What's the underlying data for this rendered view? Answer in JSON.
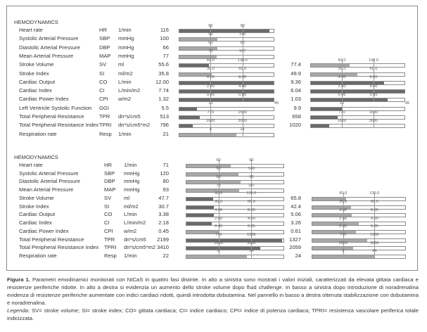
{
  "colors": {
    "abnormal": "#6a6a6a",
    "normal": "#a9a9a9"
  },
  "panels": [
    {
      "header": "HEMODYNAMICS",
      "rows": [
        {
          "label": "Heart rate",
          "abbr": "HR",
          "unit": "1/min",
          "value": "116",
          "low": "60",
          "high": "90"
        },
        {
          "label": "Systolic Arterial Pressure",
          "abbr": "SBP",
          "unit": "mmHg",
          "value": "100",
          "low": "90",
          "high": "140"
        },
        {
          "label": "Diastolic Arterial Pressure",
          "abbr": "DBP",
          "unit": "mmHg",
          "value": "66",
          "low": "60",
          "high": "90"
        },
        {
          "label": "Mean Arterial Pressure",
          "abbr": "MAP",
          "unit": "mmHg",
          "value": "77",
          "low": "70",
          "high": "107"
        },
        {
          "label": "Stroke Volume",
          "abbr": "SV",
          "unit": "ml",
          "value": "55.6",
          "low": "60.0",
          "high": "130.0"
        },
        {
          "label": "Stroke Index",
          "abbr": "SI",
          "unit": "ml/m2",
          "value": "35.8",
          "low": "35.0",
          "high": "65.0"
        },
        {
          "label": "Cardiac Output",
          "abbr": "CO",
          "unit": "L/min",
          "value": "12.00",
          "low": "4.00",
          "high": "8.00"
        },
        {
          "label": "Cardiac Index",
          "abbr": "CI",
          "unit": "L/min/m2",
          "value": "7.74",
          "low": "2.50",
          "high": "4.00"
        },
        {
          "label": "Cardiac Power Index",
          "abbr": "CPI",
          "unit": "w/m2",
          "value": "1.32",
          "low": "0.45",
          "high": "0.85"
        },
        {
          "label": "Left Ventricle Systolic Function",
          "abbr": "GGI",
          "unit": "",
          "value": "5.5",
          "low": "10",
          "high": "45",
          "high_at_end": true
        },
        {
          "label": "Total Peripheral Resistance",
          "abbr": "TPR",
          "unit": "dn*s/cm5",
          "value": "513",
          "low": "770",
          "high": "1500"
        },
        {
          "label": "Total Peripheral Resistance Index",
          "abbr": "TPRI",
          "unit": "dn*s/cm5*m2",
          "value": "796",
          "low": "1600",
          "high": "3000"
        },
        {
          "label": "Respiration rate",
          "abbr": "Resp",
          "unit": "1/min",
          "value": "21",
          "low": "8",
          "high": "24"
        }
      ]
    },
    {
      "rows": [
        {
          "abbr": "SV",
          "value": "77.4",
          "low": "60.0",
          "high": "130.0"
        },
        {
          "abbr": "SI",
          "value": "49.9",
          "low": "35.0",
          "high": "65.0"
        },
        {
          "abbr": "CO",
          "value": "9.36",
          "low": "4.00",
          "high": "8.00"
        },
        {
          "abbr": "CI",
          "value": "6.04",
          "low": "2.50",
          "high": "4.00"
        },
        {
          "abbr": "CPI",
          "value": "1.03",
          "low": "0.45",
          "high": "0.85"
        },
        {
          "abbr": "GGI",
          "value": "9.9",
          "low": "10",
          "high": "45",
          "high_at_end": true
        },
        {
          "abbr": "TPR",
          "value": "658",
          "low": "770",
          "high": "1500"
        },
        {
          "abbr": "TPRI",
          "value": "1020",
          "low": "1600",
          "high": "3000"
        }
      ]
    },
    {
      "header": "HEMODYNAMICS",
      "rows": [
        {
          "label": "Heart rate",
          "abbr": "HR",
          "unit": "1/min",
          "value": "71",
          "low": "60",
          "high": "90"
        },
        {
          "label": "Systolic Arterial Pressure",
          "abbr": "SBP",
          "unit": "mmHg",
          "value": "120",
          "low": "90",
          "high": "140"
        },
        {
          "label": "Diastolic Arterial Pressure",
          "abbr": "DBP",
          "unit": "mmHg",
          "value": "80",
          "low": "60",
          "high": "90"
        },
        {
          "label": "Mean Arterial Pressure",
          "abbr": "MAP",
          "unit": "mmHg",
          "value": "93",
          "low": "70",
          "high": "107"
        },
        {
          "label": "Stroke Volume",
          "abbr": "SV",
          "unit": "ml",
          "value": "47.7",
          "low": "60.0",
          "high": "130.0"
        },
        {
          "label": "Stroke Index",
          "abbr": "SI",
          "unit": "ml/m2",
          "value": "30.7",
          "low": "35.0",
          "high": "65.0"
        },
        {
          "label": "Cardiac Output",
          "abbr": "CO",
          "unit": "L/min",
          "value": "3.38",
          "low": "4.00",
          "high": "8.00"
        },
        {
          "label": "Cardiac Index",
          "abbr": "CI",
          "unit": "L/min/m2",
          "value": "2.18",
          "low": "2.50",
          "high": "4.00"
        },
        {
          "label": "Cardiac Power Index",
          "abbr": "CPI",
          "unit": "w/m2",
          "value": "0.45",
          "low": "0.45",
          "high": "0.85"
        },
        {
          "label": "Total Peripheral Resistance",
          "abbr": "TPR",
          "unit": "dn*s/cm5",
          "value": "2199",
          "low": "770",
          "high": "1500"
        },
        {
          "label": "Total Peripheral Resistance Index",
          "abbr": "TPRI",
          "unit": "dn*s/cm5*m2",
          "value": "3410",
          "low": "1600",
          "high": "3000"
        },
        {
          "label": "Respiration rate",
          "abbr": "Resp",
          "unit": "1/min",
          "value": "22",
          "low": "8",
          "high": "24"
        }
      ]
    },
    {
      "rows": [
        {
          "abbr": "SV",
          "value": "65.8",
          "low": "60.0",
          "high": "130.0"
        },
        {
          "abbr": "SI",
          "value": "42.4",
          "low": "35.0",
          "high": "65.0"
        },
        {
          "abbr": "CO",
          "value": "5.06",
          "low": "4.00",
          "high": "8.00"
        },
        {
          "abbr": "CI",
          "value": "3.26",
          "low": "2.50",
          "high": "4.00"
        },
        {
          "abbr": "CPI",
          "value": "0.61",
          "low": "0.45",
          "high": "0.85"
        },
        {
          "abbr": "TPR",
          "value": "1327",
          "low": "770",
          "high": "1500"
        },
        {
          "abbr": "TPRI",
          "value": "2059",
          "low": "1600",
          "high": "3000"
        },
        {
          "abbr": "Resp",
          "value": "24",
          "low": "8",
          "high": "24"
        }
      ]
    }
  ],
  "caption": {
    "label": "Figura 1.",
    "text": " Parametri emodinamici monitorati con NICaS in quattro fasi distinte. In alto a sinistra sono mostrati i valori iniziali, caratterizzati da elevata gittata cardiaca e resistenze periferiche ridotte. In alto a destra si evidenzia un aumento dello stroke volume dopo fluid challenge. In basso a sinistra dopo introduzione di noradrenalina evidenza di resistenze periferiche aumentate con indici cardiaci ridotti, quindi introdotta dobutamina. Nel pannello in basso a destra ottenuta stabilizzazione con dobutamina e noradrenalina.",
    "legend_label": "Legenda",
    "legend_text": ": SV= stroke volume; SI= stroke index; CO= gittata cardiaca; CI= indice cardiaco; CPI= indice di potenza cardiaca; TPRI= resistenza vascolare periferica totale indicizzata."
  }
}
